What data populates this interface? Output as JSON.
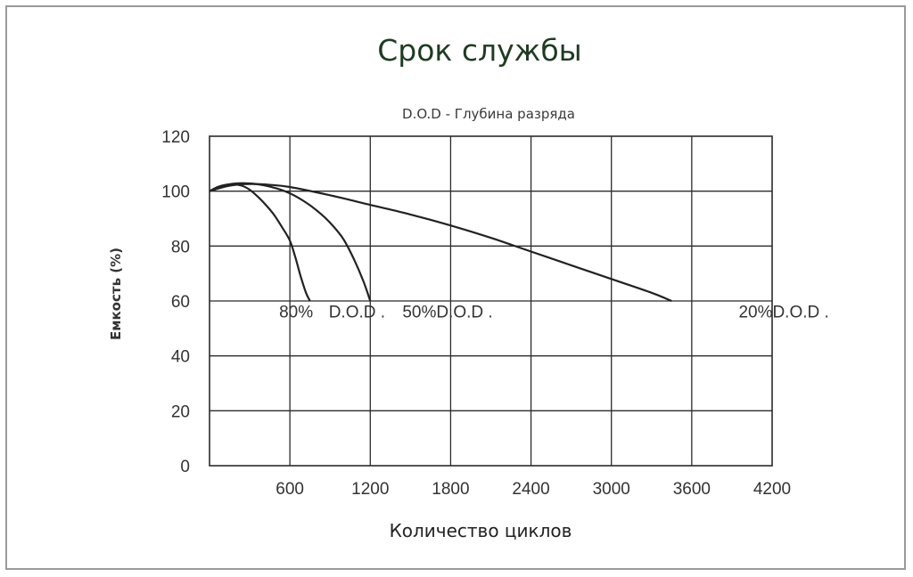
{
  "chart_data": {
    "type": "line",
    "title": "Срок службы",
    "subtitle": "D.O.D - Глубина разряда",
    "xlabel": "Количество циклов",
    "ylabel": "Емкость (%)",
    "xlim": [
      0,
      4200
    ],
    "ylim": [
      0,
      120
    ],
    "x_tick_labels": [
      "600",
      "1200",
      "1800",
      "2400",
      "3000",
      "3600",
      "4200"
    ],
    "y_tick_labels": [
      "0",
      "20",
      "40",
      "60",
      "80",
      "100",
      "120"
    ],
    "x_tick_values": [
      600,
      1200,
      1800,
      2400,
      3000,
      3600,
      4200
    ],
    "y_tick_values": [
      0,
      20,
      40,
      60,
      80,
      100,
      120
    ],
    "grid": true,
    "series": [
      {
        "name": "80% D.O.D .",
        "x": [
          0,
          60,
          120,
          180,
          240,
          300,
          360,
          420,
          480,
          540,
          600,
          640,
          680,
          720,
          750
        ],
        "y": [
          100,
          101.5,
          102.3,
          102.5,
          102,
          100.5,
          98,
          95,
          91.5,
          87,
          82,
          76,
          69,
          63,
          60
        ]
      },
      {
        "name": "50%D.O.D .",
        "x": [
          0,
          100,
          200,
          300,
          400,
          500,
          600,
          700,
          800,
          900,
          1000,
          1080,
          1150,
          1200
        ],
        "y": [
          100,
          102,
          102.8,
          102.8,
          102.2,
          101,
          99.2,
          96.5,
          93,
          88.5,
          82.5,
          75,
          67,
          60
        ]
      },
      {
        "name": "20%D.O.D .",
        "x": [
          0,
          150,
          300,
          450,
          600,
          900,
          1200,
          1500,
          1800,
          2100,
          2400,
          2700,
          3000,
          3300,
          3450
        ],
        "y": [
          100,
          102,
          102.6,
          102.3,
          101.5,
          98.5,
          95,
          91.5,
          87.5,
          83,
          78,
          73,
          68,
          63,
          60
        ]
      }
    ],
    "annotations": [
      {
        "text": "80%",
        "x": 520,
        "y": 54
      },
      {
        "text": "D.O.D .",
        "x": 890,
        "y": 54
      },
      {
        "text": "50%D.O.D .",
        "x": 1440,
        "y": 54
      },
      {
        "text": "20%D.O.D .",
        "x": 3950,
        "y": 54
      }
    ]
  }
}
